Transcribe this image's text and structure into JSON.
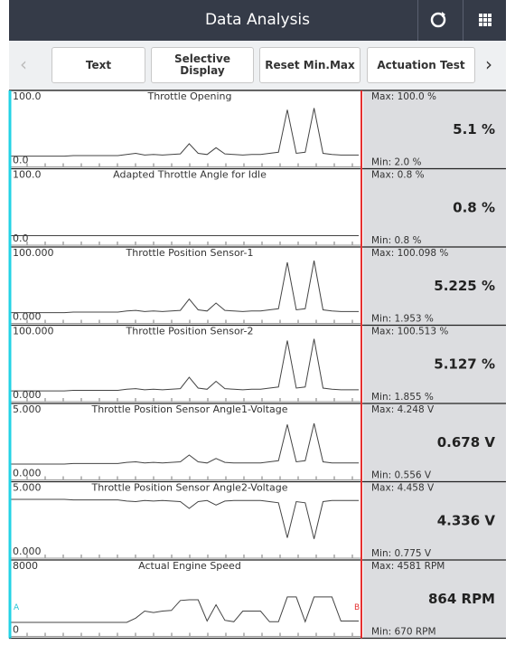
{
  "header": {
    "title": "Data Analysis"
  },
  "toolbar": {
    "buttons": [
      "Text",
      "Selective Display",
      "Reset Min.Max",
      "Actuation Test"
    ]
  },
  "panels": [
    {
      "title": "Throttle Opening",
      "top": {
        "value": 100,
        "label": "100.0"
      },
      "bottom": {
        "value": 0,
        "label": "0.0"
      },
      "max": "Max: 100.0 %",
      "current": "5.1 %",
      "min": "Min: 2.0 %",
      "trace": [
        3,
        3,
        3,
        3,
        3,
        3,
        3,
        4,
        4,
        4,
        4,
        4,
        4,
        6,
        8,
        5,
        6,
        5,
        6,
        7,
        25,
        8,
        6,
        18,
        7,
        6,
        5,
        6,
        6,
        8,
        10,
        85,
        8,
        10,
        88,
        8,
        6,
        5,
        5,
        5
      ]
    },
    {
      "title": "Adapted Throttle Angle for Idle",
      "top": {
        "value": 100,
        "label": "100.0"
      },
      "bottom": {
        "value": 0,
        "label": "0.0"
      },
      "max": "Max: 0.8 %",
      "current": "0.8 %",
      "min": "Min: 0.8 %",
      "trace": [
        0.8,
        0.8,
        0.8,
        0.8,
        0.8,
        0.8,
        0.8,
        0.8,
        0.8,
        0.8,
        0.8,
        0.8,
        0.8,
        0.8,
        0.8,
        0.8,
        0.8,
        0.8,
        0.8,
        0.8,
        0.8,
        0.8,
        0.8,
        0.8,
        0.8,
        0.8,
        0.8,
        0.8,
        0.8,
        0.8,
        0.8,
        0.8,
        0.8,
        0.8,
        0.8,
        0.8,
        0.8,
        0.8,
        0.8,
        0.8
      ]
    },
    {
      "title": "Throttle Position Sensor-1",
      "top": {
        "value": 100,
        "label": "100.000"
      },
      "bottom": {
        "value": 0,
        "label": "0.000"
      },
      "max": "Max: 100.098 %",
      "current": "5.225 %",
      "min": "Min: 1.953 %",
      "trace": [
        3,
        3,
        3,
        3,
        3,
        3,
        3,
        4,
        4,
        4,
        4,
        4,
        4,
        6,
        7,
        5,
        6,
        5,
        6,
        7,
        27,
        8,
        6,
        20,
        7,
        6,
        5,
        6,
        6,
        8,
        10,
        92,
        8,
        10,
        95,
        8,
        6,
        5,
        5,
        5
      ]
    },
    {
      "title": "Throttle Position Sensor-2",
      "top": {
        "value": 100,
        "label": "100.000"
      },
      "bottom": {
        "value": 0,
        "label": "0.000"
      },
      "max": "Max: 100.513 %",
      "current": "5.127 %",
      "min": "Min: 1.855 %",
      "trace": [
        3,
        3,
        3,
        3,
        3,
        3,
        3,
        4,
        4,
        4,
        4,
        4,
        4,
        6,
        7,
        5,
        6,
        5,
        6,
        7,
        27,
        8,
        6,
        20,
        7,
        6,
        5,
        6,
        6,
        8,
        10,
        92,
        8,
        10,
        95,
        8,
        6,
        5,
        5,
        5
      ]
    },
    {
      "title": "Throttle Position Sensor Angle1-Voltage",
      "top": {
        "value": 5,
        "label": "5.000"
      },
      "bottom": {
        "value": 0,
        "label": "0.000"
      },
      "max": "Max: 4.248 V",
      "current": "0.678 V",
      "min": "Min: 0.556 V",
      "trace": [
        0.6,
        0.6,
        0.6,
        0.6,
        0.6,
        0.6,
        0.6,
        0.65,
        0.65,
        0.65,
        0.65,
        0.65,
        0.65,
        0.75,
        0.8,
        0.7,
        0.75,
        0.7,
        0.75,
        0.8,
        1.4,
        0.8,
        0.7,
        1.1,
        0.75,
        0.7,
        0.7,
        0.7,
        0.7,
        0.8,
        0.9,
        4.1,
        0.8,
        0.9,
        4.2,
        0.8,
        0.7,
        0.7,
        0.7,
        0.7
      ]
    },
    {
      "title": "Throttle Position Sensor Angle2-Voltage",
      "top": {
        "value": 5,
        "label": "5.000"
      },
      "bottom": {
        "value": 0,
        "label": "0.000"
      },
      "max": "Max: 4.458 V",
      "current": "4.336 V",
      "min": "Min: 0.775 V",
      "trace": [
        4.4,
        4.4,
        4.4,
        4.4,
        4.4,
        4.4,
        4.4,
        4.35,
        4.35,
        4.35,
        4.35,
        4.35,
        4.35,
        4.25,
        4.2,
        4.3,
        4.25,
        4.3,
        4.25,
        4.2,
        3.6,
        4.2,
        4.3,
        3.9,
        4.25,
        4.3,
        4.3,
        4.3,
        4.3,
        4.2,
        4.1,
        1.0,
        4.2,
        4.1,
        0.9,
        4.2,
        4.3,
        4.3,
        4.3,
        4.3
      ]
    },
    {
      "title": "Actual Engine Speed",
      "top": 8000,
      "bottom": 0,
      "max": "Max: 4581 RPM",
      "current": "864 RPM",
      "min": "Min: 670 RPM",
      "trace": [
        700,
        700,
        700,
        700,
        700,
        700,
        700,
        700,
        700,
        700,
        700,
        700,
        700,
        700,
        1300,
        2300,
        2100,
        2300,
        2400,
        3800,
        3900,
        3900,
        900,
        3200,
        1000,
        800,
        2300,
        2300,
        2300,
        800,
        800,
        4300,
        4300,
        800,
        4300,
        4300,
        4300,
        900,
        900,
        900
      ]
    }
  ],
  "cursors": [
    "A",
    "B"
  ]
}
